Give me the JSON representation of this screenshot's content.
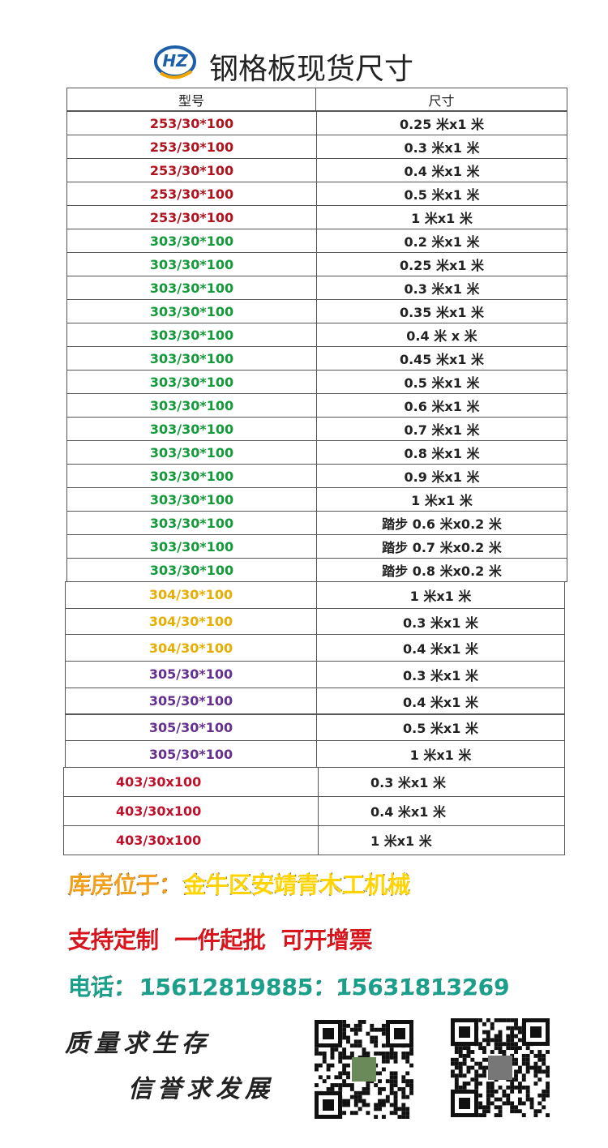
{
  "header": {
    "logo": "HZ",
    "title": "钢格板现货尺寸"
  },
  "table": {
    "headers": [
      "型号",
      "尺寸"
    ],
    "rows": [
      {
        "model": "253/30*100",
        "size": "0.25 米x1 米",
        "color": "#b0121e"
      },
      {
        "model": "253/30*100",
        "size": "0.3 米x1 米",
        "color": "#b0121e"
      },
      {
        "model": "253/30*100",
        "size": "0.4 米x1 米",
        "color": "#b0121e"
      },
      {
        "model": "253/30*100",
        "size": "0.5 米x1 米",
        "color": "#b0121e"
      },
      {
        "model": "253/30*100",
        "size": "1 米x1 米",
        "color": "#b0121e"
      },
      {
        "model": "303/30*100",
        "size": "0.2 米x1 米",
        "color": "#149a3a"
      },
      {
        "model": "303/30*100",
        "size": "0.25 米x1 米",
        "color": "#149a3a"
      },
      {
        "model": "303/30*100",
        "size": "0.3 米x1 米",
        "color": "#149a3a"
      },
      {
        "model": "303/30*100",
        "size": "0.35 米x1 米",
        "color": "#149a3a"
      },
      {
        "model": "303/30*100",
        "size": "0.4 米 x 米",
        "color": "#149a3a"
      },
      {
        "model": "303/30*100",
        "size": "0.45 米x1 米",
        "color": "#149a3a"
      },
      {
        "model": "303/30*100",
        "size": "0.5 米x1 米",
        "color": "#149a3a"
      },
      {
        "model": "303/30*100",
        "size": "0.6 米x1 米",
        "color": "#149a3a"
      },
      {
        "model": "303/30*100",
        "size": "0.7 米x1 米",
        "color": "#149a3a"
      },
      {
        "model": "303/30*100",
        "size": "0.8 米x1 米",
        "color": "#149a3a"
      },
      {
        "model": "303/30*100",
        "size": "0.9 米x1 米",
        "color": "#149a3a"
      },
      {
        "model": "303/30*100",
        "size": "1 米x1 米",
        "color": "#149a3a"
      },
      {
        "model": "303/30*100",
        "size": "踏步 0.6 米x0.2 米",
        "color": "#149a3a"
      },
      {
        "model": "303/30*100",
        "size": "踏步 0.7 米x0.2 米",
        "color": "#149a3a"
      },
      {
        "model": "303/30*100",
        "size": "踏步 0.8 米x0.2 米",
        "color": "#149a3a"
      },
      {
        "model": "304/30*100",
        "size": "1 米x1 米",
        "color": "#e6ae00"
      },
      {
        "model": "304/30*100",
        "size": "0.3 米x1 米",
        "color": "#e6ae00"
      },
      {
        "model": "304/30*100",
        "size": "0.4 米x1 米",
        "color": "#e6ae00"
      },
      {
        "model": "305/30*100",
        "size": "0.3 米x1 米",
        "color": "#66308f"
      },
      {
        "model": "305/30*100",
        "size": "0.4 米x1 米",
        "color": "#66308f"
      },
      {
        "model": "305/30*100",
        "size": "0.5 米x1 米",
        "color": "#66308f"
      },
      {
        "model": "305/30*100",
        "size": "1 米x1 米",
        "color": "#66308f"
      },
      {
        "model": "403/30x100",
        "size": "0.3 米x1 米",
        "color": "#c0102a"
      },
      {
        "model": "403/30x100",
        "size": "0.4 米x1 米",
        "color": "#c0102a"
      },
      {
        "model": "403/30x100",
        "size": "1 米x1 米",
        "color": "#c0102a"
      }
    ]
  },
  "info": {
    "location_label": "库房位于：",
    "location": "金牛区安靖青木工机械",
    "services": "支持定制  一件起批  可开增票",
    "phone_label": "电话：",
    "phones": "15612819885：15631813269"
  },
  "slogans": [
    "质量求生存",
    "信誉求发展"
  ]
}
